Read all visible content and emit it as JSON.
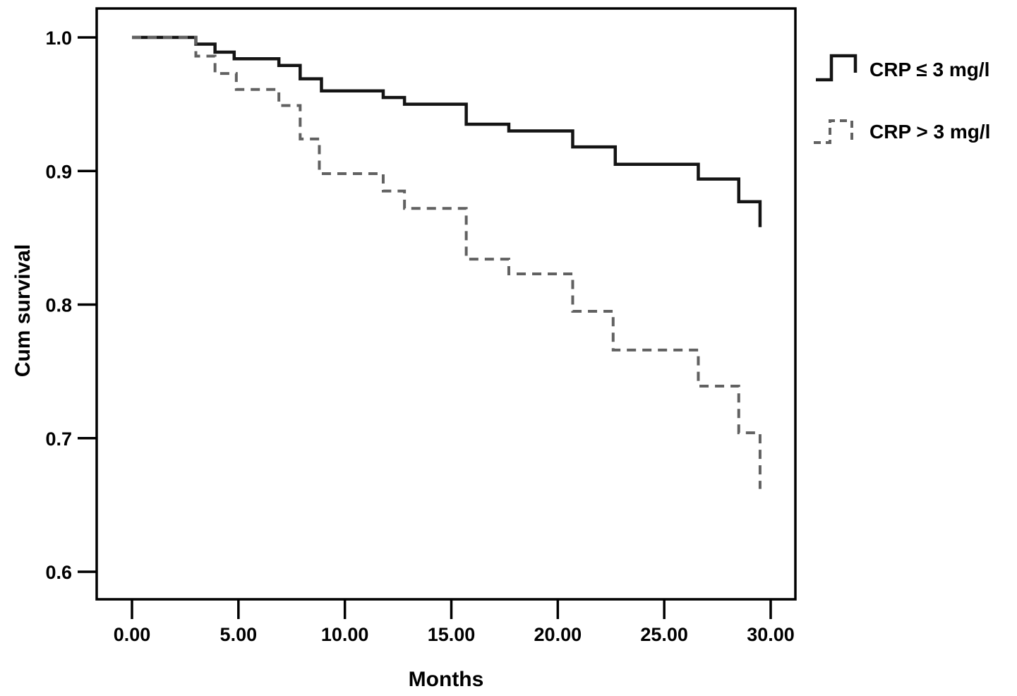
{
  "figure": {
    "xlabel": "Months",
    "ylabel": "Cum survival"
  },
  "legend": {
    "items": [
      {
        "label": "CRP ≤ 3 mg/l",
        "style": "solid"
      },
      {
        "label": "CRP > 3 mg/l",
        "style": "dashed"
      }
    ]
  },
  "colors": {
    "solid_line": "#141414",
    "dashed_line": "#616161",
    "frame": "#000000",
    "text": "#000000",
    "background": "#ffffff"
  },
  "chart_data": {
    "type": "line",
    "subtype": "kaplan-meier-step",
    "title": "",
    "xlabel": "Months",
    "ylabel": "Cum survival",
    "xlim": [
      0,
      30
    ],
    "ylim": [
      0.6,
      1.0
    ],
    "grid": false,
    "legend_position": "outside-top-right",
    "xticks": {
      "values": [
        0,
        5,
        10,
        15,
        20,
        25,
        30
      ],
      "labels": [
        "0.00",
        "5.00",
        "10.00",
        "15.00",
        "20.00",
        "25.00",
        "30.00"
      ]
    },
    "yticks": {
      "values": [
        1.0,
        0.9,
        0.8,
        0.7,
        0.6
      ],
      "labels": [
        "1.0",
        "0.9",
        "0.8",
        "0.7",
        "0.6"
      ]
    },
    "series": [
      {
        "name": "CRP ≤ 3 mg/l",
        "line_style": "solid",
        "color": "#141414",
        "steps": [
          [
            0,
            1.0
          ],
          [
            3.0,
            0.995
          ],
          [
            3.9,
            0.989
          ],
          [
            4.8,
            0.984
          ],
          [
            6.9,
            0.979
          ],
          [
            7.9,
            0.969
          ],
          [
            8.9,
            0.96
          ],
          [
            11.8,
            0.955
          ],
          [
            12.8,
            0.95
          ],
          [
            15.7,
            0.935
          ],
          [
            17.7,
            0.93
          ],
          [
            20.7,
            0.918
          ],
          [
            22.7,
            0.905
          ],
          [
            26.6,
            0.894
          ],
          [
            28.5,
            0.877
          ],
          [
            29.5,
            0.858
          ]
        ]
      },
      {
        "name": "CRP > 3 mg/l",
        "line_style": "dashed",
        "color": "#616161",
        "steps": [
          [
            0,
            1.0
          ],
          [
            3.0,
            0.986
          ],
          [
            3.9,
            0.973
          ],
          [
            4.9,
            0.961
          ],
          [
            6.9,
            0.949
          ],
          [
            7.9,
            0.924
          ],
          [
            8.8,
            0.898
          ],
          [
            11.8,
            0.885
          ],
          [
            12.8,
            0.872
          ],
          [
            15.7,
            0.834
          ],
          [
            17.7,
            0.823
          ],
          [
            20.7,
            0.795
          ],
          [
            22.6,
            0.766
          ],
          [
            26.6,
            0.739
          ],
          [
            28.5,
            0.704
          ],
          [
            29.5,
            0.662
          ]
        ]
      }
    ]
  }
}
